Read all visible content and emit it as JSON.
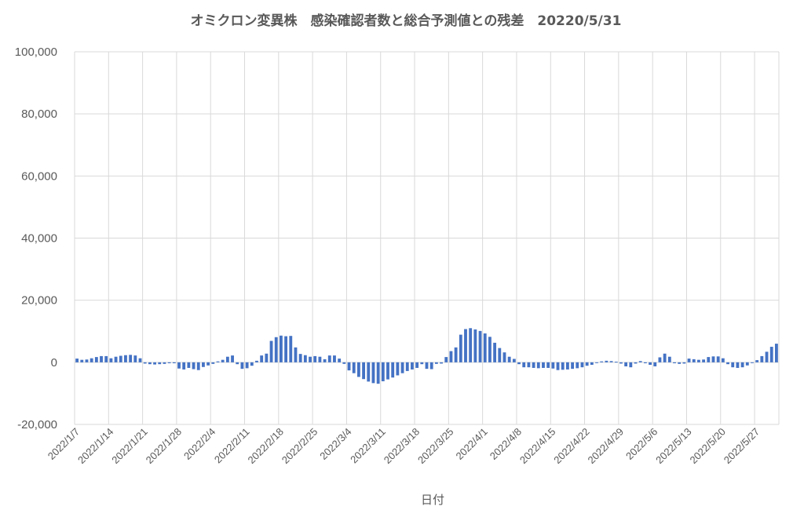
{
  "chart_data": {
    "type": "bar",
    "title": "オミクロン変異株　感染確認者数と総合予測値との残差　20220/5/31",
    "xlabel": "日付",
    "ylabel": "",
    "ylim": [
      -20000,
      100000
    ],
    "yticks": [
      -20000,
      0,
      20000,
      40000,
      60000,
      80000,
      100000
    ],
    "ytick_labels": [
      "-20,000",
      "0",
      "20,000",
      "40,000",
      "60,000",
      "80,000",
      "100,000"
    ],
    "grid": true,
    "legend": "none",
    "bar_color": "#4472c4",
    "start_date": "2022-01-07",
    "x_tick_labels": [
      "2022/1/7",
      "2022/1/14",
      "2022/1/21",
      "2022/1/28",
      "2022/2/4",
      "2022/2/11",
      "2022/2/18",
      "2022/2/25",
      "2022/3/4",
      "2022/3/11",
      "2022/3/18",
      "2022/3/25",
      "2022/4/1",
      "2022/4/8",
      "2022/4/15",
      "2022/4/22",
      "2022/4/29",
      "2022/5/6",
      "2022/5/13",
      "2022/5/20",
      "2022/5/27"
    ],
    "values": [
      1200,
      800,
      900,
      1300,
      1700,
      2000,
      2000,
      1300,
      1800,
      2100,
      2300,
      2400,
      2200,
      1300,
      -400,
      -600,
      -700,
      -600,
      -500,
      -300,
      -300,
      -2000,
      -2300,
      -1800,
      -2200,
      -2500,
      -1500,
      -1000,
      -500,
      300,
      800,
      1800,
      2200,
      -600,
      -2100,
      -1900,
      -1100,
      500,
      2200,
      2800,
      6900,
      8100,
      8600,
      8400,
      8500,
      4800,
      2700,
      2300,
      1800,
      2000,
      1800,
      1000,
      2200,
      2200,
      1200,
      -500,
      -2600,
      -3500,
      -4700,
      -5400,
      -6200,
      -6700,
      -6900,
      -6100,
      -5500,
      -4900,
      -4200,
      -3500,
      -2800,
      -2300,
      -1800,
      -600,
      -2100,
      -2200,
      -500,
      -400,
      1700,
      3600,
      4800,
      8900,
      10700,
      11000,
      10600,
      10100,
      9300,
      8200,
      6300,
      4600,
      3200,
      1800,
      1100,
      -600,
      -1600,
      -1600,
      -1800,
      -1900,
      -1800,
      -1800,
      -2000,
      -2500,
      -2400,
      -2300,
      -2100,
      -1900,
      -1600,
      -1100,
      -800,
      -200,
      300,
      500,
      400,
      200,
      -400,
      -1300,
      -1600,
      -400,
      400,
      -300,
      -800,
      -1300,
      1600,
      2800,
      1800,
      -300,
      -500,
      -400,
      1200,
      1000,
      800,
      900,
      1700,
      1900,
      1900,
      1300,
      -600,
      -1600,
      -1800,
      -1600,
      -1000,
      -200,
      700,
      2000,
      3400,
      5000,
      6000
    ]
  }
}
